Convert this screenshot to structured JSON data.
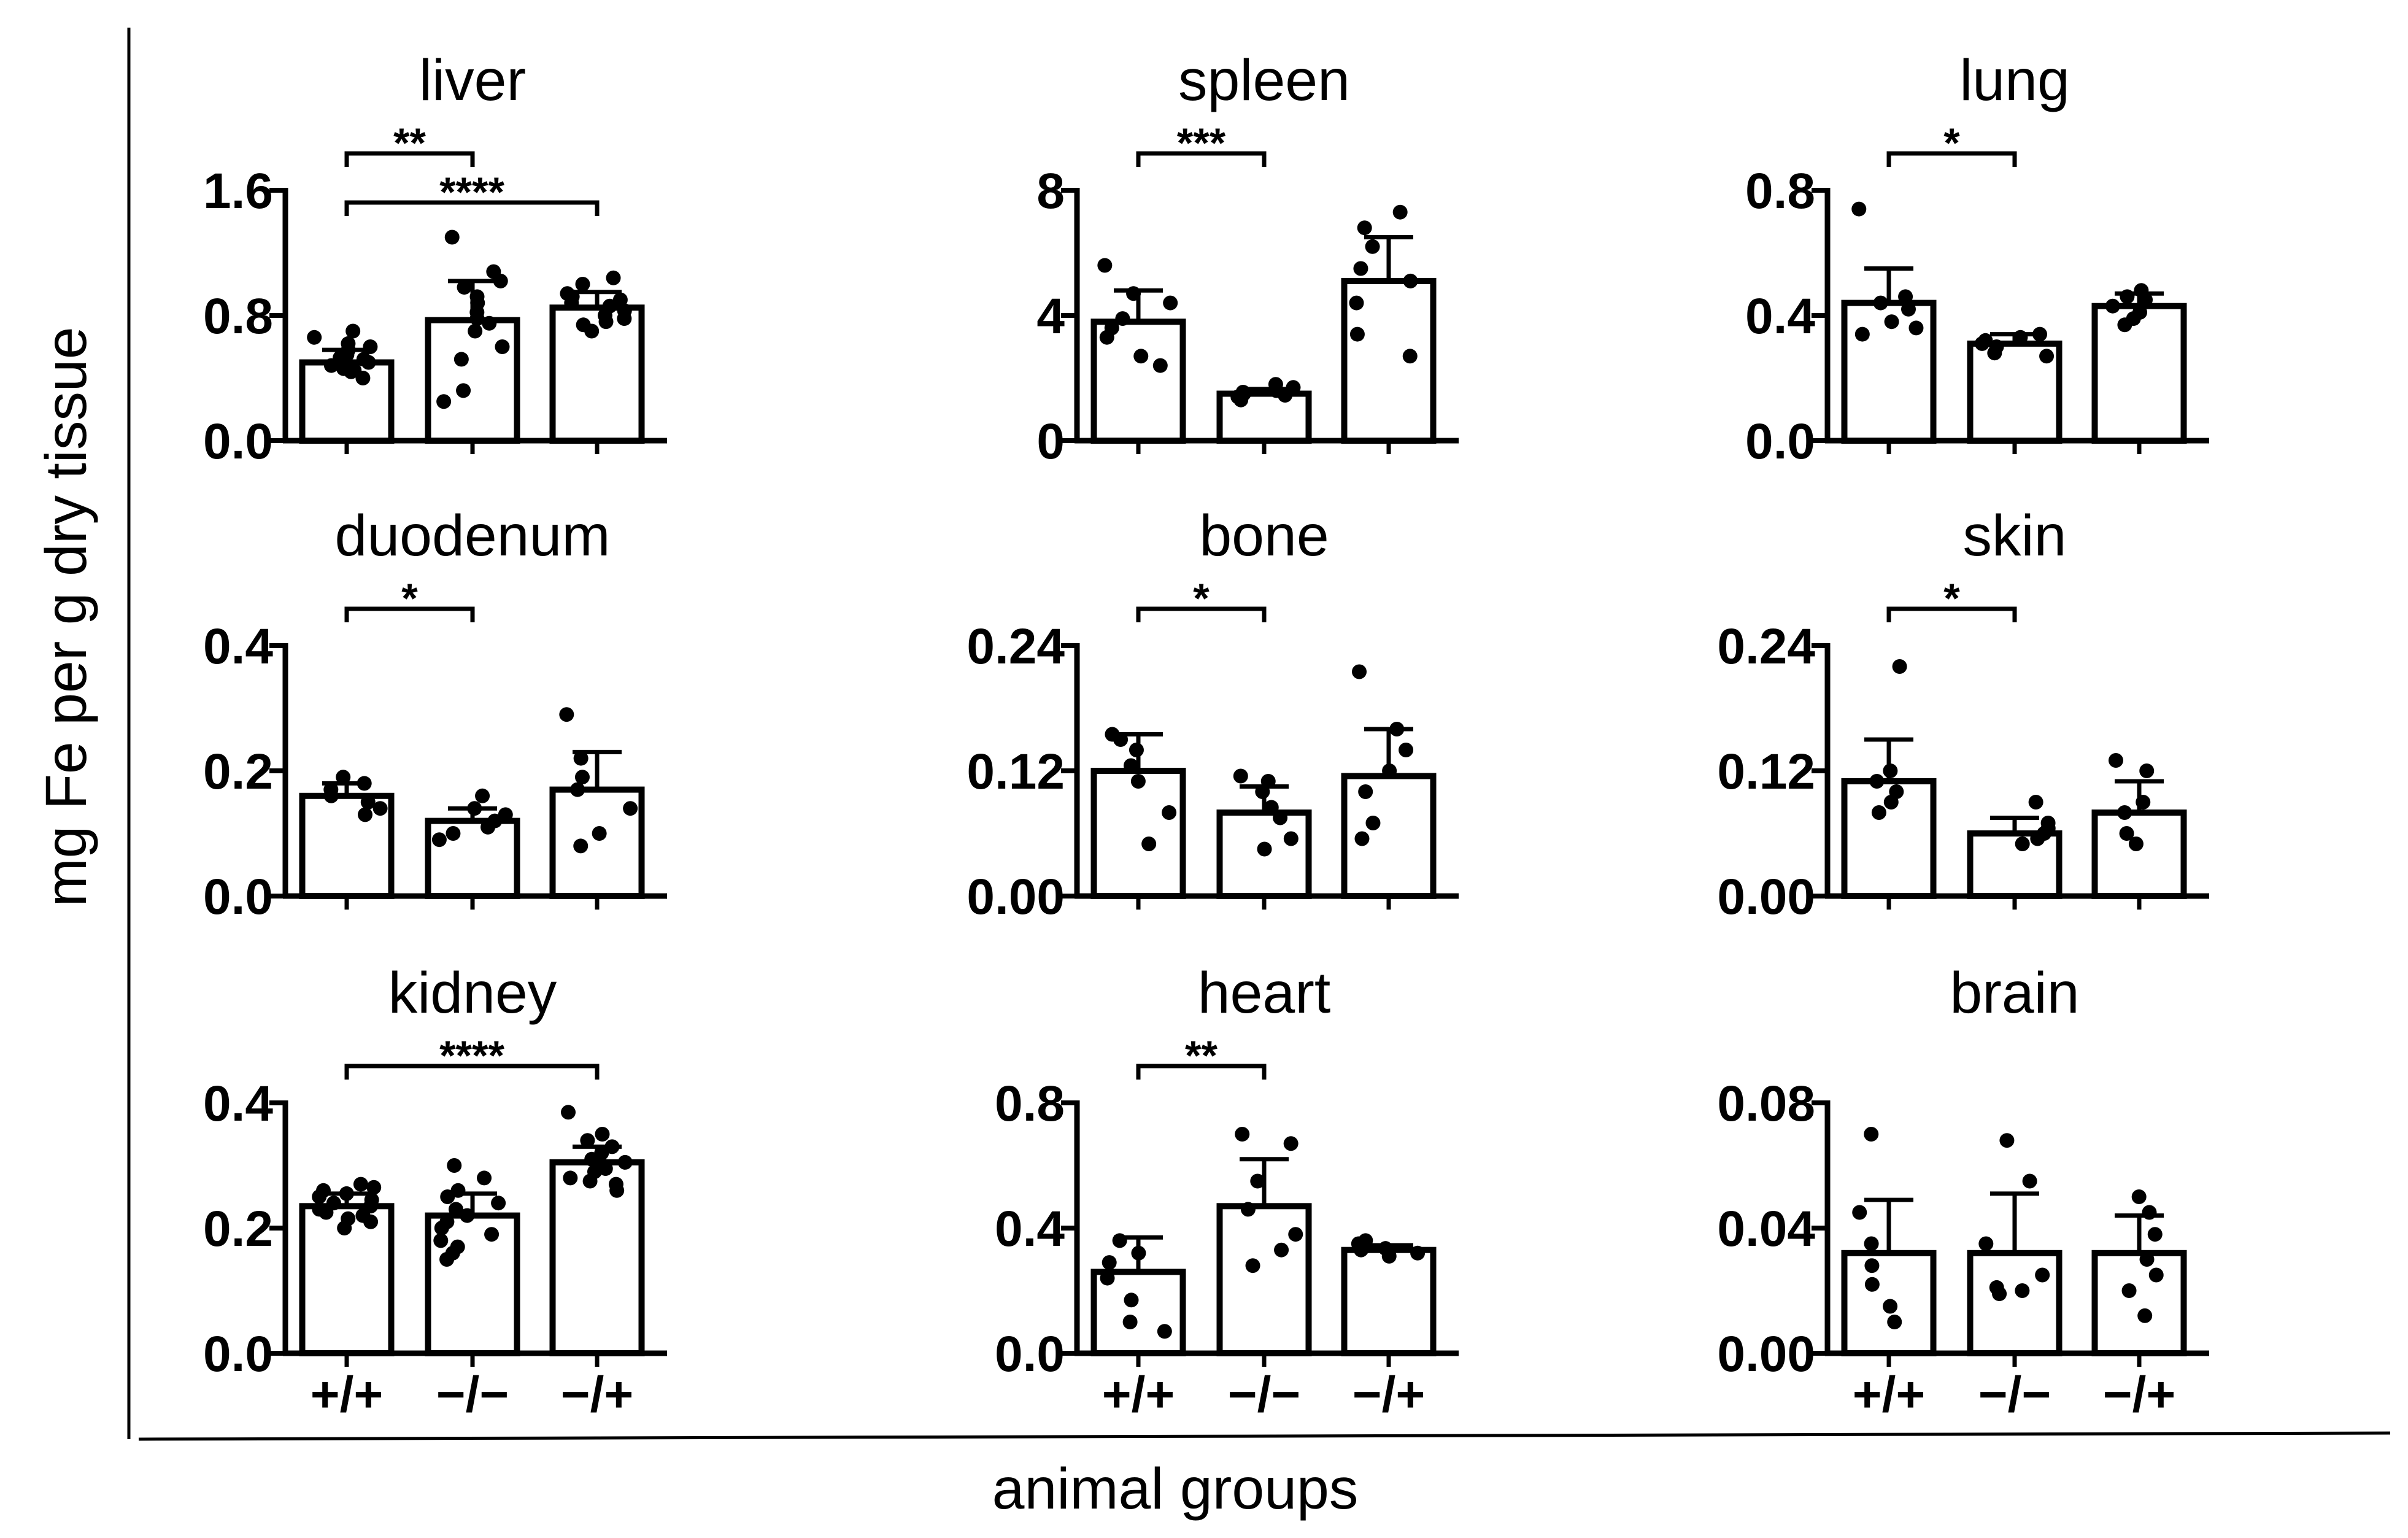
{
  "figure": {
    "ylabel": "mg Fe per g dry tissue",
    "xlabel": "animal groups"
  },
  "chart_data": [
    {
      "type": "bar",
      "title": "liver",
      "categories": [
        "+/+",
        "−/−",
        "−/+"
      ],
      "means": [
        0.5,
        0.77,
        0.85
      ],
      "errors": [
        0.08,
        0.25,
        0.1
      ],
      "points": [
        [
          0.4,
          0.44,
          0.46,
          0.48,
          0.5,
          0.52,
          0.55,
          0.58,
          0.62,
          0.66,
          0.7,
          0.45,
          0.53,
          0.6
        ],
        [
          0.25,
          0.32,
          0.52,
          0.6,
          0.7,
          0.78,
          0.82,
          0.88,
          0.92,
          0.98,
          1.02,
          1.08,
          1.3,
          0.75
        ],
        [
          0.7,
          0.74,
          0.78,
          0.8,
          0.83,
          0.86,
          0.88,
          0.9,
          0.94,
          1.0,
          1.04,
          0.76,
          0.92
        ]
      ],
      "ylim": [
        0,
        1.6
      ],
      "yticks": [
        "0.0",
        "0.8",
        "1.6"
      ],
      "significance": [
        {
          "from": 0,
          "to": 1,
          "label": "**"
        },
        {
          "from": 0,
          "to": 2,
          "label": "****"
        }
      ],
      "show_xlabels": false
    },
    {
      "type": "bar",
      "title": "spleen",
      "categories": [
        "+/+",
        "−/−",
        "−/+"
      ],
      "means": [
        3.8,
        1.5,
        5.1
      ],
      "errors": [
        1.0,
        0.15,
        1.4
      ],
      "points": [
        [
          2.4,
          2.7,
          3.3,
          3.6,
          3.9,
          4.4,
          4.7,
          5.6
        ],
        [
          1.3,
          1.4,
          1.45,
          1.5,
          1.55,
          1.6,
          1.7,
          1.8
        ],
        [
          2.7,
          3.4,
          4.4,
          5.1,
          5.5,
          6.2,
          6.8,
          7.3
        ]
      ],
      "ylim": [
        0,
        8
      ],
      "yticks": [
        "0",
        "4",
        "8"
      ],
      "significance": [
        {
          "from": 0,
          "to": 1,
          "label": "***"
        }
      ],
      "show_xlabels": false
    },
    {
      "type": "bar",
      "title": "lung",
      "categories": [
        "+/+",
        "−/−",
        "−/+"
      ],
      "means": [
        0.44,
        0.31,
        0.43
      ],
      "errors": [
        0.11,
        0.03,
        0.04
      ],
      "points": [
        [
          0.34,
          0.36,
          0.38,
          0.42,
          0.44,
          0.46,
          0.74
        ],
        [
          0.27,
          0.28,
          0.3,
          0.31,
          0.32,
          0.33,
          0.34
        ],
        [
          0.37,
          0.39,
          0.41,
          0.43,
          0.45,
          0.46,
          0.48
        ]
      ],
      "ylim": [
        0,
        0.8
      ],
      "yticks": [
        "0.0",
        "0.4",
        "0.8"
      ],
      "significance": [
        {
          "from": 0,
          "to": 1,
          "label": "*"
        }
      ],
      "show_xlabels": false
    },
    {
      "type": "bar",
      "title": "duodenum",
      "categories": [
        "+/+",
        "−/−",
        "−/+"
      ],
      "means": [
        0.16,
        0.12,
        0.17
      ],
      "errors": [
        0.02,
        0.02,
        0.06
      ],
      "points": [
        [
          0.13,
          0.14,
          0.15,
          0.16,
          0.17,
          0.18,
          0.19
        ],
        [
          0.09,
          0.1,
          0.11,
          0.12,
          0.13,
          0.14,
          0.16
        ],
        [
          0.08,
          0.1,
          0.14,
          0.17,
          0.19,
          0.22,
          0.29
        ]
      ],
      "ylim": [
        0,
        0.4
      ],
      "yticks": [
        "0.0",
        "0.2",
        "0.4"
      ],
      "significance": [
        {
          "from": 0,
          "to": 1,
          "label": "*"
        }
      ],
      "show_xlabels": false
    },
    {
      "type": "bar",
      "title": "bone",
      "categories": [
        "+/+",
        "−/−",
        "−/+"
      ],
      "means": [
        0.12,
        0.08,
        0.115
      ],
      "errors": [
        0.035,
        0.025,
        0.045
      ],
      "points": [
        [
          0.05,
          0.08,
          0.11,
          0.125,
          0.14,
          0.15,
          0.155
        ],
        [
          0.045,
          0.055,
          0.075,
          0.085,
          0.1,
          0.11,
          0.115
        ],
        [
          0.055,
          0.07,
          0.1,
          0.12,
          0.14,
          0.16,
          0.215
        ]
      ],
      "ylim": [
        0,
        0.24
      ],
      "yticks": [
        "0.00",
        "0.12",
        "0.24"
      ],
      "significance": [
        {
          "from": 0,
          "to": 1,
          "label": "*"
        }
      ],
      "show_xlabels": false
    },
    {
      "type": "bar",
      "title": "skin",
      "categories": [
        "+/+",
        "−/−",
        "−/+"
      ],
      "means": [
        0.11,
        0.06,
        0.08
      ],
      "errors": [
        0.04,
        0.015,
        0.03
      ],
      "points": [
        [
          0.08,
          0.09,
          0.1,
          0.11,
          0.12,
          0.22
        ],
        [
          0.05,
          0.055,
          0.06,
          0.065,
          0.07,
          0.09
        ],
        [
          0.05,
          0.06,
          0.08,
          0.09,
          0.12,
          0.13
        ]
      ],
      "ylim": [
        0,
        0.24
      ],
      "yticks": [
        "0.00",
        "0.12",
        "0.24"
      ],
      "significance": [
        {
          "from": 0,
          "to": 1,
          "label": "*"
        }
      ],
      "show_xlabels": false
    },
    {
      "type": "bar",
      "title": "kidney",
      "categories": [
        "+/+",
        "−/−",
        "−/+"
      ],
      "means": [
        0.235,
        0.22,
        0.305
      ],
      "errors": [
        0.02,
        0.035,
        0.025
      ],
      "points": [
        [
          0.2,
          0.21,
          0.22,
          0.225,
          0.23,
          0.235,
          0.24,
          0.245,
          0.25,
          0.255,
          0.26,
          0.265,
          0.215,
          0.27
        ],
        [
          0.15,
          0.17,
          0.18,
          0.19,
          0.2,
          0.21,
          0.22,
          0.23,
          0.24,
          0.25,
          0.26,
          0.28,
          0.3,
          0.16
        ],
        [
          0.26,
          0.27,
          0.28,
          0.29,
          0.3,
          0.305,
          0.31,
          0.32,
          0.33,
          0.34,
          0.35,
          0.385,
          0.275,
          0.295
        ]
      ],
      "ylim": [
        0,
        0.4
      ],
      "yticks": [
        "0.0",
        "0.2",
        "0.4"
      ],
      "significance": [
        {
          "from": 0,
          "to": 2,
          "label": "****"
        }
      ],
      "show_xlabels": true
    },
    {
      "type": "bar",
      "title": "heart",
      "categories": [
        "+/+",
        "−/−",
        "−/+"
      ],
      "means": [
        0.26,
        0.47,
        0.33
      ],
      "errors": [
        0.11,
        0.15,
        0.015
      ],
      "points": [
        [
          0.07,
          0.1,
          0.17,
          0.24,
          0.29,
          0.32,
          0.36
        ],
        [
          0.28,
          0.33,
          0.38,
          0.46,
          0.55,
          0.67,
          0.7
        ],
        [
          0.31,
          0.32,
          0.33,
          0.335,
          0.34,
          0.35,
          0.36
        ]
      ],
      "ylim": [
        0,
        0.8
      ],
      "yticks": [
        "0.0",
        "0.4",
        "0.8"
      ],
      "significance": [
        {
          "from": 0,
          "to": 1,
          "label": "**"
        }
      ],
      "show_xlabels": true
    },
    {
      "type": "bar",
      "title": "brain",
      "categories": [
        "+/+",
        "−/−",
        "−/+"
      ],
      "means": [
        0.032,
        0.032,
        0.032
      ],
      "errors": [
        0.017,
        0.019,
        0.012
      ],
      "points": [
        [
          0.01,
          0.015,
          0.022,
          0.028,
          0.035,
          0.045,
          0.07
        ],
        [
          0.019,
          0.02,
          0.021,
          0.025,
          0.035,
          0.055,
          0.068
        ],
        [
          0.012,
          0.02,
          0.025,
          0.03,
          0.038,
          0.045,
          0.05
        ]
      ],
      "ylim": [
        0,
        0.08
      ],
      "yticks": [
        "0.00",
        "0.04",
        "0.08"
      ],
      "significance": [],
      "show_xlabels": true
    }
  ]
}
